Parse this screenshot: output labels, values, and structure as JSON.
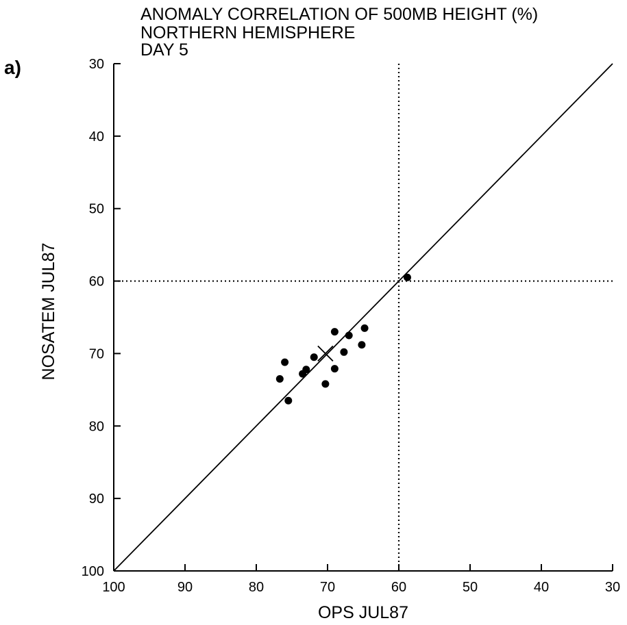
{
  "chart_data": {
    "type": "scatter",
    "panel_label": "a)",
    "title_lines": [
      "ANOMALY CORRELATION OF 500MB HEIGHT (%)",
      "NORTHERN HEMISPHERE",
      "DAY 5"
    ],
    "xlabel": "OPS JUL87",
    "ylabel": "NOSATEM JUL87",
    "xlim": [
      100,
      30
    ],
    "ylim": [
      100,
      30
    ],
    "x_reversed": true,
    "y_values_increase_downward": true,
    "xticks": [
      100,
      90,
      80,
      70,
      60,
      50,
      40,
      30
    ],
    "yticks": [
      30,
      40,
      50,
      60,
      70,
      80,
      90,
      100
    ],
    "xtick_labels": [
      "100",
      "90",
      "80",
      "70",
      "60",
      "50",
      "40",
      "30"
    ],
    "ytick_labels": [
      "30",
      "40",
      "50",
      "60",
      "70",
      "80",
      "90",
      "100"
    ],
    "grid": false,
    "reference_lines": [
      {
        "kind": "vertical",
        "x": 60,
        "style": "dotted"
      },
      {
        "kind": "horizontal",
        "y": 60,
        "style": "dotted"
      },
      {
        "kind": "diagonal",
        "from": [
          100,
          100
        ],
        "to": [
          30,
          30
        ],
        "style": "solid"
      }
    ],
    "series": [
      {
        "marker": "filled-circle",
        "color": "#000000",
        "points": [
          {
            "x": 58.8,
            "y": 59.5
          },
          {
            "x": 69.0,
            "y": 67.0
          },
          {
            "x": 67.0,
            "y": 67.5
          },
          {
            "x": 64.8,
            "y": 66.5
          },
          {
            "x": 65.2,
            "y": 68.8
          },
          {
            "x": 67.7,
            "y": 69.8
          },
          {
            "x": 71.9,
            "y": 70.5
          },
          {
            "x": 69.0,
            "y": 72.1
          },
          {
            "x": 70.3,
            "y": 74.2
          },
          {
            "x": 76.0,
            "y": 71.2
          },
          {
            "x": 76.7,
            "y": 73.5
          },
          {
            "x": 73.0,
            "y": 72.2
          },
          {
            "x": 73.5,
            "y": 72.8
          },
          {
            "x": 75.5,
            "y": 76.5
          }
        ]
      },
      {
        "marker": "x-cross",
        "color": "#000000",
        "points": [
          {
            "x": 70.3,
            "y": 70.0
          }
        ]
      }
    ]
  }
}
